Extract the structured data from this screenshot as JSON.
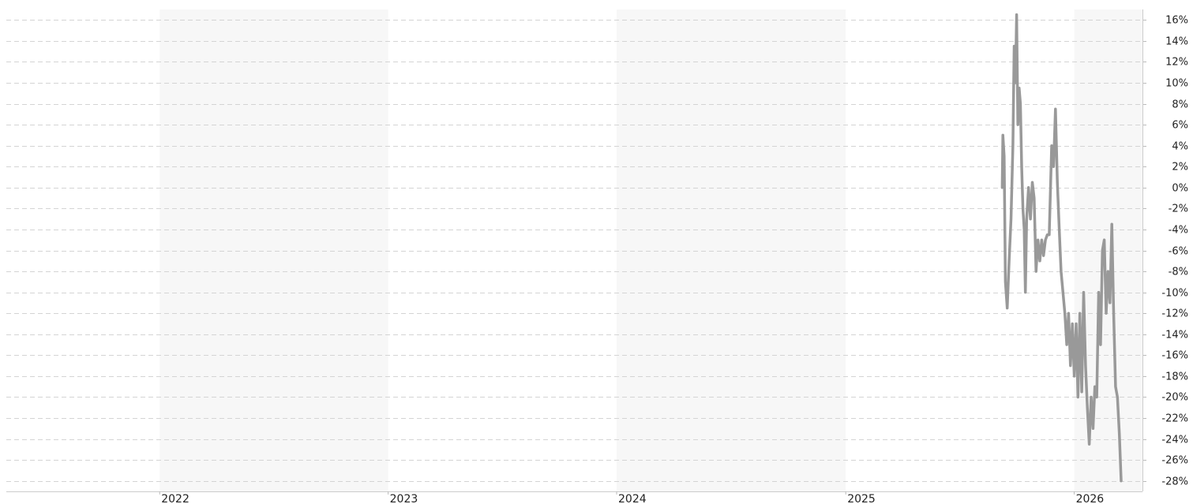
{
  "chart_data": {
    "type": "line",
    "title": "",
    "xlabel": "",
    "ylabel": "",
    "x_tick_labels": [
      "2022",
      "2023",
      "2024",
      "2025",
      "2026"
    ],
    "y_tick_labels": [
      "16%",
      "14%",
      "12%",
      "10%",
      "8%",
      "6%",
      "4%",
      "2%",
      "0%",
      "-2%",
      "-4%",
      "-6%",
      "-8%",
      "-10%",
      "-12%",
      "-14%",
      "-16%",
      "-18%",
      "-20%",
      "-22%",
      "-24%",
      "-26%",
      "-28%"
    ],
    "y_ticks": [
      16,
      14,
      12,
      10,
      8,
      6,
      4,
      2,
      0,
      -2,
      -4,
      -6,
      -8,
      -10,
      -12,
      -14,
      -16,
      -18,
      -20,
      -22,
      -24,
      -26,
      -28
    ],
    "xlim": [
      "2021-05-01",
      "2026-04-20"
    ],
    "ylim": [
      -29,
      17
    ],
    "y_axis_position": "right",
    "grid": true,
    "alternating_year_bands": true,
    "band_color": "#f7f7f7",
    "grid_color": "#d4d4d4",
    "series": [
      {
        "color": "#999999",
        "points": [
          [
            "2025-09-08",
            0.0
          ],
          [
            "2025-09-09",
            5.0
          ],
          [
            "2025-09-11",
            3.0
          ],
          [
            "2025-09-13",
            -9.0
          ],
          [
            "2025-09-16",
            -11.5
          ],
          [
            "2025-09-19",
            -7.0
          ],
          [
            "2025-09-22",
            -3.0
          ],
          [
            "2025-09-25",
            4.0
          ],
          [
            "2025-09-27",
            13.5
          ],
          [
            "2025-09-29",
            10.0
          ],
          [
            "2025-10-01",
            16.5
          ],
          [
            "2025-10-03",
            6.0
          ],
          [
            "2025-10-05",
            9.5
          ],
          [
            "2025-10-07",
            8.0
          ],
          [
            "2025-10-09",
            2.0
          ],
          [
            "2025-10-11",
            -2.0
          ],
          [
            "2025-10-13",
            -4.0
          ],
          [
            "2025-10-15",
            -10.0
          ],
          [
            "2025-10-17",
            -3.0
          ],
          [
            "2025-10-20",
            0.0
          ],
          [
            "2025-10-23",
            -3.0
          ],
          [
            "2025-10-26",
            0.5
          ],
          [
            "2025-10-29",
            -1.0
          ],
          [
            "2025-11-01",
            -8.0
          ],
          [
            "2025-11-04",
            -5.0
          ],
          [
            "2025-11-07",
            -7.0
          ],
          [
            "2025-11-10",
            -5.0
          ],
          [
            "2025-11-13",
            -6.5
          ],
          [
            "2025-11-16",
            -5.0
          ],
          [
            "2025-11-19",
            -4.5
          ],
          [
            "2025-11-22",
            -4.5
          ],
          [
            "2025-11-26",
            4.0
          ],
          [
            "2025-11-29",
            2.0
          ],
          [
            "2025-12-02",
            7.5
          ],
          [
            "2025-12-05",
            0.5
          ],
          [
            "2025-12-08",
            -4.0
          ],
          [
            "2025-12-11",
            -8.0
          ],
          [
            "2025-12-14",
            -10.0
          ],
          [
            "2025-12-17",
            -12.0
          ],
          [
            "2025-12-20",
            -15.0
          ],
          [
            "2025-12-23",
            -12.0
          ],
          [
            "2025-12-26",
            -17.0
          ],
          [
            "2025-12-29",
            -13.0
          ],
          [
            "2026-01-01",
            -18.0
          ],
          [
            "2026-01-04",
            -13.0
          ],
          [
            "2026-01-07",
            -20.0
          ],
          [
            "2026-01-10",
            -12.0
          ],
          [
            "2026-01-13",
            -19.5
          ],
          [
            "2026-01-16",
            -10.0
          ],
          [
            "2026-01-19",
            -17.0
          ],
          [
            "2026-01-22",
            -21.0
          ],
          [
            "2026-01-25",
            -24.5
          ],
          [
            "2026-01-28",
            -20.0
          ],
          [
            "2026-01-31",
            -23.0
          ],
          [
            "2026-02-03",
            -19.0
          ],
          [
            "2026-02-06",
            -20.0
          ],
          [
            "2026-02-09",
            -10.0
          ],
          [
            "2026-02-12",
            -15.0
          ],
          [
            "2026-02-15",
            -6.0
          ],
          [
            "2026-02-18",
            -5.0
          ],
          [
            "2026-02-21",
            -12.0
          ],
          [
            "2026-02-24",
            -8.0
          ],
          [
            "2026-02-27",
            -11.0
          ],
          [
            "2026-03-02",
            -3.5
          ],
          [
            "2026-03-05",
            -12.0
          ],
          [
            "2026-03-08",
            -19.0
          ],
          [
            "2026-03-11",
            -20.0
          ],
          [
            "2026-03-14",
            -23.5
          ],
          [
            "2026-03-17",
            -28.0
          ]
        ]
      }
    ]
  }
}
